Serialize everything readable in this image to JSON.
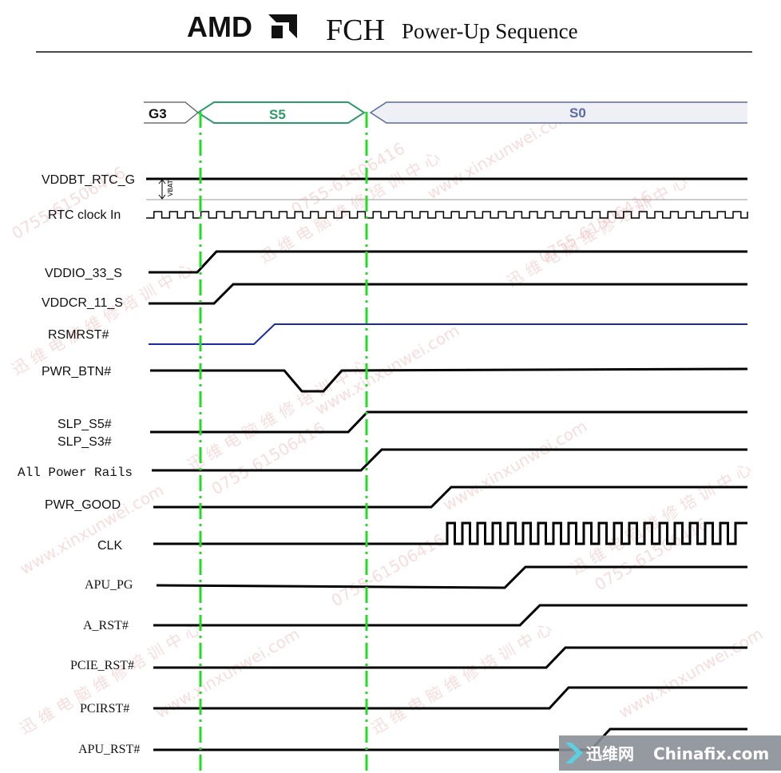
{
  "header": {
    "brand": "AMD",
    "chip": "FCH",
    "subtitle": "Power-Up Sequence"
  },
  "states": {
    "g3": "G3",
    "s5": "S5",
    "s0": "S0"
  },
  "vbat_label": "VBAT",
  "signals": [
    {
      "id": "vddbt",
      "label": "VDDBT_RTC_G"
    },
    {
      "id": "rtc",
      "label": "RTC clock In"
    },
    {
      "id": "vddio",
      "label": "VDDIO_33_S"
    },
    {
      "id": "vddcr",
      "label": "VDDCR_11_S"
    },
    {
      "id": "rsmrst",
      "label": "RSMRST#"
    },
    {
      "id": "pwrbtn",
      "label": "PWR_BTN#"
    },
    {
      "id": "slps5",
      "label": "SLP_S5#"
    },
    {
      "id": "slps3",
      "label": "SLP_S3#"
    },
    {
      "id": "allrails",
      "label": "All Power Rails"
    },
    {
      "id": "pwrgood",
      "label": "PWR_GOOD"
    },
    {
      "id": "clk",
      "label": "CLK"
    },
    {
      "id": "apupg",
      "label": "APU_PG"
    },
    {
      "id": "arst",
      "label": "A_RST#"
    },
    {
      "id": "pcierst",
      "label": "PCIE_RST#"
    },
    {
      "id": "pcirst",
      "label": "PCIRST#"
    },
    {
      "id": "apurst",
      "label": "APU_RST#"
    }
  ],
  "watermarks": [
    "迅 维 电 脑 维 修 培 训 中 心",
    "0755-61506416",
    "www.xinxunwei.com"
  ],
  "logo": {
    "cn": "迅维网",
    "en": "Chinafix.com"
  },
  "colors": {
    "s5": "#2e9a6a",
    "s0": "#5a6aa0",
    "marker": "#22dd22",
    "rsmrst": "#1a2aa0"
  }
}
